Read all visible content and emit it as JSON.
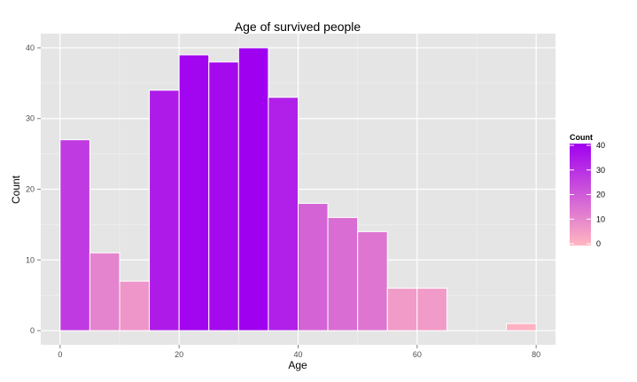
{
  "chart_data": {
    "type": "bar",
    "title": "Age of survived people",
    "xlabel": "Age",
    "ylabel": "Count",
    "bins": [
      {
        "start": 0,
        "end": 5,
        "count": 27
      },
      {
        "start": 5,
        "end": 10,
        "count": 11
      },
      {
        "start": 10,
        "end": 15,
        "count": 7
      },
      {
        "start": 15,
        "end": 20,
        "count": 34
      },
      {
        "start": 20,
        "end": 25,
        "count": 39
      },
      {
        "start": 25,
        "end": 30,
        "count": 38
      },
      {
        "start": 30,
        "end": 35,
        "count": 40
      },
      {
        "start": 35,
        "end": 40,
        "count": 33
      },
      {
        "start": 40,
        "end": 45,
        "count": 18
      },
      {
        "start": 45,
        "end": 50,
        "count": 16
      },
      {
        "start": 50,
        "end": 55,
        "count": 14
      },
      {
        "start": 55,
        "end": 60,
        "count": 6
      },
      {
        "start": 60,
        "end": 65,
        "count": 6
      },
      {
        "start": 65,
        "end": 70,
        "count": 0
      },
      {
        "start": 70,
        "end": 75,
        "count": 0
      },
      {
        "start": 75,
        "end": 80,
        "count": 1
      }
    ],
    "xlim": [
      -3.25,
      83.25
    ],
    "ylim": [
      -2,
      42
    ],
    "xticks": [
      0,
      20,
      40,
      60,
      80
    ],
    "yticks": [
      0,
      10,
      20,
      30,
      40
    ],
    "grid": true,
    "legend": {
      "title": "Count",
      "position": "right",
      "ticks": [
        0,
        10,
        20,
        30,
        40
      ],
      "range": [
        0,
        40
      ],
      "color_low": "#ffb6c1",
      "color_high": "#a000f0"
    },
    "panel_background": "#e5e5e5",
    "bar_outline": "#ffffff"
  }
}
